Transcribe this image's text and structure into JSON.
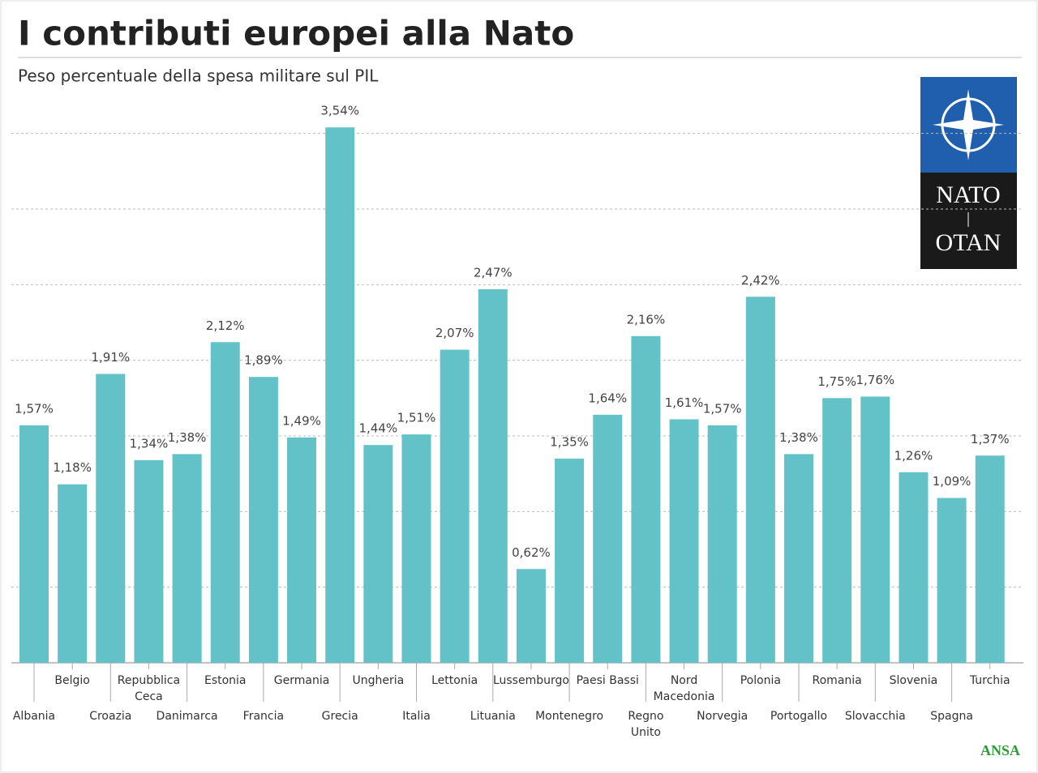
{
  "chart_data": {
    "type": "bar",
    "title": "I contributi europei alla Nato",
    "subtitle": "Peso percentuale della spesa militare sul PIL",
    "categories": [
      "Albania",
      "Belgio",
      "Croazia",
      "Repubblica\nCeca",
      "Danimarca",
      "Estonia",
      "Francia",
      "Germania",
      "Grecia",
      "Ungheria",
      "Italia",
      "Lettonia",
      "Lituania",
      "Lussemburgo",
      "Montenegro",
      "Paesi Bassi",
      "Regno\nUnito",
      "Nord\nMacedonia",
      "Norvegia",
      "Polonia",
      "Portogallo",
      "Romania",
      "Slovacchia",
      "Slovenia",
      "Spagna",
      "Turchia"
    ],
    "values": [
      1.57,
      1.18,
      1.91,
      1.34,
      1.38,
      2.12,
      1.89,
      1.49,
      3.54,
      1.44,
      1.51,
      2.07,
      2.47,
      0.62,
      1.35,
      1.64,
      2.16,
      1.61,
      1.57,
      2.42,
      1.38,
      1.75,
      1.76,
      1.26,
      1.09,
      1.37
    ],
    "value_labels": [
      "1,57%",
      "1,18%",
      "1,91%",
      "1,34%",
      "1,38%",
      "2,12%",
      "1,89%",
      "1,49%",
      "3,54%",
      "1,44%",
      "1,51%",
      "2,07%",
      "2,47%",
      "0,62%",
      "1,35%",
      "1,64%",
      "2,16%",
      "1,61%",
      "1,57%",
      "2,42%",
      "1,38%",
      "1,75%",
      "1,76%",
      "1,26%",
      "1,09%",
      "1,37%"
    ],
    "color": "#62c2c8",
    "ylim": [
      0,
      3.6
    ],
    "yticks": [
      0.5,
      1,
      1.5,
      2,
      2.5,
      3,
      3.5
    ],
    "grid": true
  },
  "logo": {
    "top": "NATO",
    "bottom": "OTAN"
  },
  "source": "ANSA"
}
